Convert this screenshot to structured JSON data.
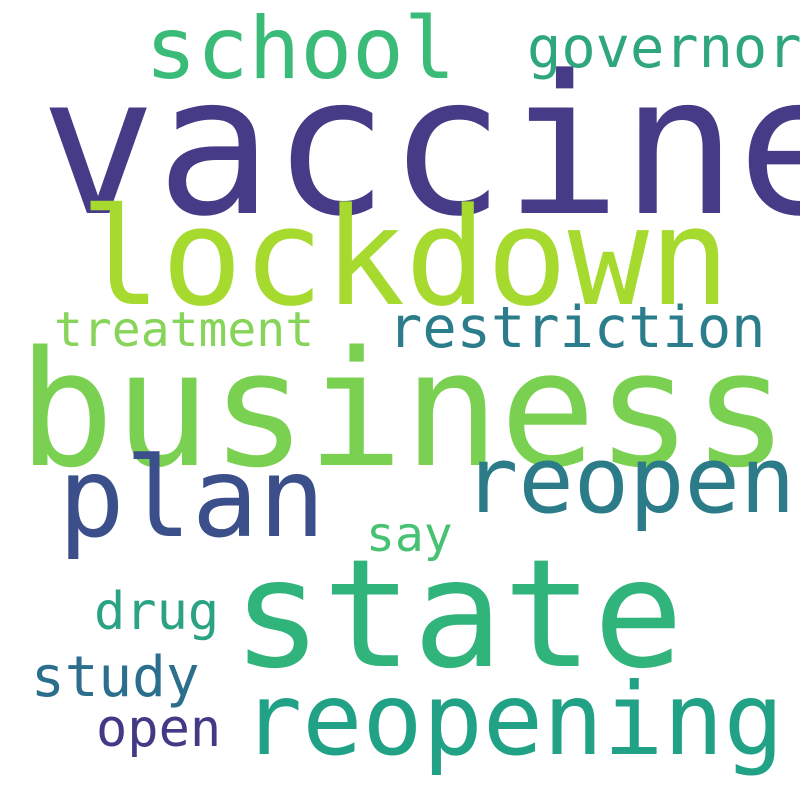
{
  "words": {
    "vaccine": {
      "text": "vaccine",
      "color": "#463b86"
    },
    "lockdown": {
      "text": "lockdown",
      "color": "#a6da2f"
    },
    "business": {
      "text": "business",
      "color": "#7ad151"
    },
    "school": {
      "text": "school",
      "color": "#3bbb78"
    },
    "governor": {
      "text": "governor",
      "color": "#2fa67f"
    },
    "treatment": {
      "text": "treatment",
      "color": "#87d45a"
    },
    "restriction": {
      "text": "restriction",
      "color": "#2b7d8b"
    },
    "plan": {
      "text": "plan",
      "color": "#3b4f8b"
    },
    "reopen": {
      "text": "reopen",
      "color": "#2c7b89"
    },
    "say": {
      "text": "say",
      "color": "#47c172"
    },
    "drug": {
      "text": "drug",
      "color": "#2ba283"
    },
    "state": {
      "text": "state",
      "color": "#31b47b"
    },
    "study": {
      "text": "study",
      "color": "#2b6f8d"
    },
    "open": {
      "text": "open",
      "color": "#433a86"
    },
    "reopening": {
      "text": "reopening",
      "color": "#21a286"
    }
  }
}
